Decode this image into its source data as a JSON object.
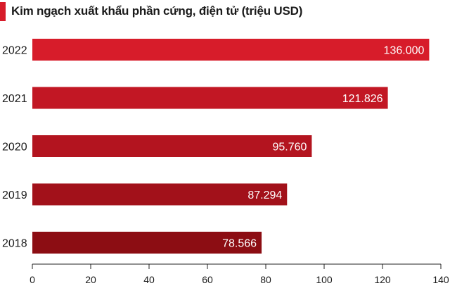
{
  "chart_data": {
    "type": "bar",
    "orientation": "horizontal",
    "title": "Kim ngạch xuất khẩu phần cứng, điện tử (triệu USD)",
    "categories": [
      "2022",
      "2021",
      "2020",
      "2019",
      "2018"
    ],
    "values": [
      136.0,
      121.826,
      95.76,
      87.294,
      78.566
    ],
    "value_labels": [
      "136.000",
      "121.826",
      "95.760",
      "87.294",
      "78.566"
    ],
    "bar_colors": [
      "#d71c2a",
      "#c21724",
      "#b3141f",
      "#a2111a",
      "#8c0d13"
    ],
    "xlim": [
      0,
      140
    ],
    "xticks": [
      0,
      20,
      40,
      60,
      80,
      100,
      120,
      140
    ],
    "grid": false,
    "legend": "none"
  }
}
